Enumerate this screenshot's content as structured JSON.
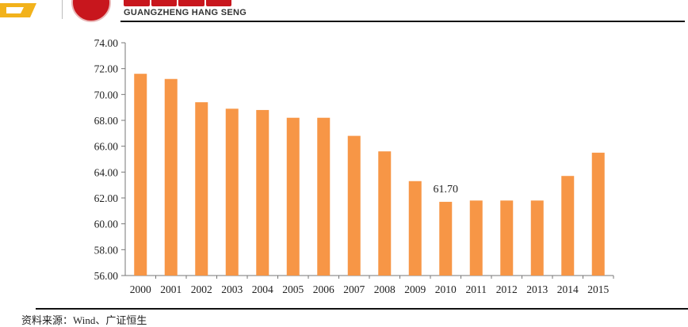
{
  "header": {
    "brand_en": "GUANGZHENG HANG SENG"
  },
  "source_note": "资料来源：Wind、广证恒生",
  "chart_data": {
    "type": "bar",
    "categories": [
      "2000",
      "2001",
      "2002",
      "2003",
      "2004",
      "2005",
      "2006",
      "2007",
      "2008",
      "2009",
      "2010",
      "2011",
      "2012",
      "2013",
      "2014",
      "2015"
    ],
    "values": [
      71.6,
      71.2,
      69.4,
      68.9,
      68.8,
      68.2,
      68.2,
      66.8,
      65.6,
      63.3,
      61.7,
      61.8,
      61.8,
      61.8,
      63.7,
      65.5
    ],
    "bar_color": "#F79646",
    "ylim": [
      56.0,
      74.0
    ],
    "yticks": [
      "56.00",
      "58.00",
      "60.00",
      "62.00",
      "64.00",
      "66.00",
      "68.00",
      "70.00",
      "72.00",
      "74.00"
    ],
    "annotations": [
      {
        "category": "2010",
        "text": "61.70"
      }
    ],
    "grid": false,
    "legend": "none",
    "title": "",
    "xlabel": "",
    "ylabel": ""
  }
}
